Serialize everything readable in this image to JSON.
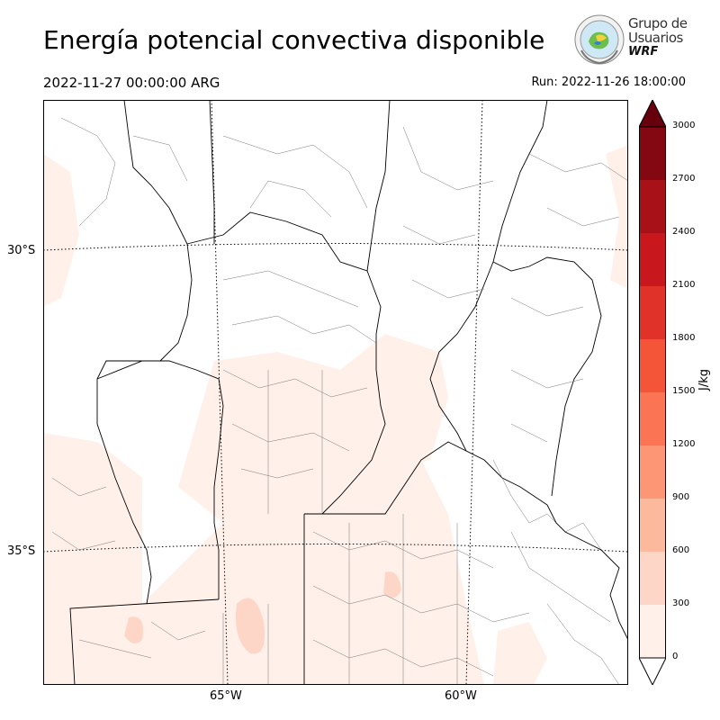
{
  "header": {
    "title": "Energía potencial convectiva disponible",
    "valid_time": "2022-11-27 00:00:00 ARG",
    "run_time": "Run: 2022-11-26 18:00:00"
  },
  "logo": {
    "line1": "Grupo de",
    "line2": "Usuarios",
    "line3": "WRF"
  },
  "map": {
    "lat_labels": [
      "30°S",
      "35°S"
    ],
    "lon_labels": [
      "65°W",
      "60°W"
    ]
  },
  "colorbar": {
    "unit": "J/kg",
    "levels": [
      "0",
      "300",
      "600",
      "900",
      "1200",
      "1500",
      "1800",
      "2100",
      "2400",
      "2700",
      "3000"
    ],
    "colors": [
      "#fff0ea",
      "#fdd6c7",
      "#fcb99c",
      "#fc9675",
      "#fb7554",
      "#f45438",
      "#e1322a",
      "#c9181d",
      "#a91118",
      "#840811",
      "#67000d"
    ]
  }
}
